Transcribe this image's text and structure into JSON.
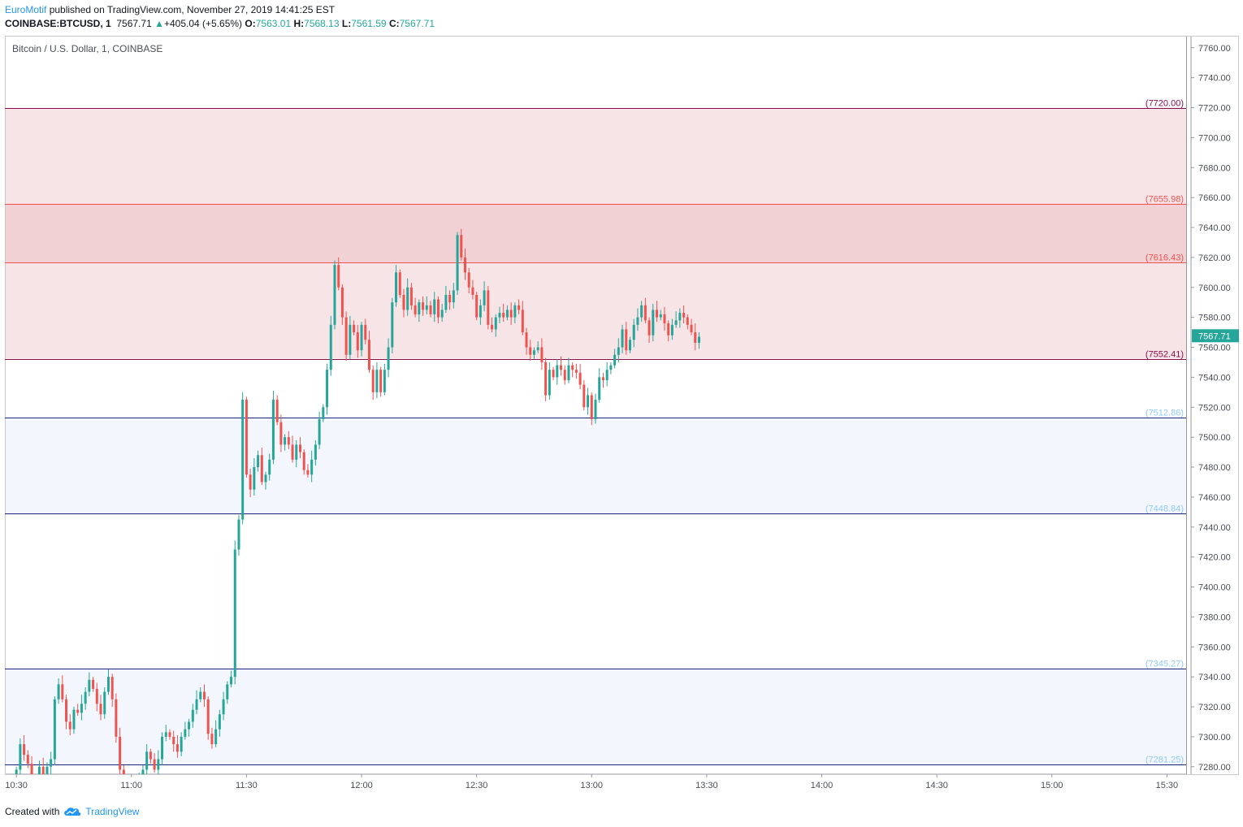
{
  "header": {
    "author": "EuroMotif",
    "published_text": "published on TradingView.com, November 27, 2019 14:41:25 EST",
    "symbol": "COINBASE:BTCUSD, 1",
    "last": "7567.71",
    "change": "+405.04 (+5.65%)",
    "o_label": "O:",
    "o_val": "7563.01",
    "h_label": "H:",
    "h_val": "7568.13",
    "l_label": "L:",
    "l_val": "7561.59",
    "c_label": "C:",
    "c_val": "7567.71"
  },
  "footer": {
    "created_with": "Created with",
    "brand": "TradingView"
  },
  "colors": {
    "up": "#26a69a",
    "down": "#ef5350",
    "resistance_line": "#880e4f",
    "support_line": "#1a237e",
    "resistance_zone": "#f7e4e6",
    "strong_zone": "#f2d1d4",
    "support_zone": "#f3f7fd"
  },
  "chart_data": {
    "type": "candlestick",
    "title": "Bitcoin / U.S. Dollar, 1, COINBASE",
    "ylim": [
      7275,
      7768
    ],
    "y_ticks": [
      "7280.00",
      "7300.00",
      "7320.00",
      "7340.00",
      "7360.00",
      "7380.00",
      "7400.00",
      "7420.00",
      "7440.00",
      "7460.00",
      "7480.00",
      "7500.00",
      "7520.00",
      "7540.00",
      "7560.00",
      "7580.00",
      "7600.00",
      "7620.00",
      "7640.00",
      "7660.00",
      "7680.00",
      "7700.00",
      "7720.00",
      "7740.00",
      "7760.00"
    ],
    "x_ticks": [
      {
        "label": "10:30",
        "t": 630
      },
      {
        "label": "11:00",
        "t": 660
      },
      {
        "label": "11:30",
        "t": 690
      },
      {
        "label": "12:00",
        "t": 720
      },
      {
        "label": "12:30",
        "t": 750
      },
      {
        "label": "13:00",
        "t": 780
      },
      {
        "label": "13:30",
        "t": 810
      },
      {
        "label": "14:00",
        "t": 840
      },
      {
        "label": "14:30",
        "t": 870
      },
      {
        "label": "15:00",
        "t": 900
      },
      {
        "label": "15:30",
        "t": 930
      }
    ],
    "x_range_minutes": [
      627,
      935
    ],
    "levels": [
      {
        "value": 7720.0,
        "label": "(7720.00)",
        "kind": "resistance"
      },
      {
        "value": 7655.98,
        "label": "(7655.98)",
        "kind": "strong"
      },
      {
        "value": 7616.43,
        "label": "(7616.43)",
        "kind": "strong"
      },
      {
        "value": 7552.41,
        "label": "(7552.41)",
        "kind": "resistance"
      },
      {
        "value": 7512.86,
        "label": "(7512.86)",
        "kind": "support"
      },
      {
        "value": 7448.84,
        "label": "(7448.84)",
        "kind": "support"
      },
      {
        "value": 7345.27,
        "label": "(7345.27)",
        "kind": "support"
      },
      {
        "value": 7281.25,
        "label": "(7281.25)",
        "kind": "support"
      }
    ],
    "zones": [
      {
        "from": 7552.41,
        "to": 7720.0,
        "kind": "resistance"
      },
      {
        "from": 7616.43,
        "to": 7655.98,
        "kind": "strong"
      },
      {
        "from": 7448.84,
        "to": 7512.86,
        "kind": "support"
      },
      {
        "from": 7281.25,
        "to": 7345.27,
        "kind": "support"
      }
    ],
    "close_path": [
      [
        630,
        7278
      ],
      [
        631,
        7295
      ],
      [
        632,
        7288
      ],
      [
        633,
        7282
      ],
      [
        634,
        7270
      ],
      [
        635,
        7268
      ],
      [
        636,
        7280
      ],
      [
        637,
        7268
      ],
      [
        638,
        7280
      ],
      [
        639,
        7285
      ],
      [
        640,
        7325
      ],
      [
        641,
        7335
      ],
      [
        642,
        7325
      ],
      [
        643,
        7310
      ],
      [
        644,
        7305
      ],
      [
        645,
        7318
      ],
      [
        646,
        7316
      ],
      [
        647,
        7322
      ],
      [
        648,
        7330
      ],
      [
        649,
        7338
      ],
      [
        650,
        7332
      ],
      [
        651,
        7322
      ],
      [
        652,
        7315
      ],
      [
        653,
        7330
      ],
      [
        654,
        7340
      ],
      [
        655,
        7325
      ],
      [
        656,
        7300
      ],
      [
        657,
        7278
      ],
      [
        658,
        7270
      ],
      [
        659,
        7268
      ],
      [
        660,
        7270
      ],
      [
        661,
        7265
      ],
      [
        662,
        7270
      ],
      [
        663,
        7278
      ],
      [
        664,
        7290
      ],
      [
        665,
        7285
      ],
      [
        666,
        7278
      ],
      [
        667,
        7285
      ],
      [
        668,
        7300
      ],
      [
        669,
        7303
      ],
      [
        670,
        7300
      ],
      [
        671,
        7295
      ],
      [
        672,
        7290
      ],
      [
        673,
        7300
      ],
      [
        674,
        7305
      ],
      [
        675,
        7310
      ],
      [
        676,
        7318
      ],
      [
        677,
        7325
      ],
      [
        678,
        7330
      ],
      [
        679,
        7325
      ],
      [
        680,
        7302
      ],
      [
        681,
        7295
      ],
      [
        682,
        7305
      ],
      [
        683,
        7315
      ],
      [
        684,
        7325
      ],
      [
        685,
        7335
      ],
      [
        686,
        7340
      ],
      [
        687,
        7425
      ],
      [
        688,
        7445
      ],
      [
        689,
        7525
      ],
      [
        690,
        7475
      ],
      [
        691,
        7465
      ],
      [
        692,
        7480
      ],
      [
        693,
        7488
      ],
      [
        694,
        7470
      ],
      [
        695,
        7475
      ],
      [
        696,
        7485
      ],
      [
        697,
        7525
      ],
      [
        698,
        7510
      ],
      [
        699,
        7495
      ],
      [
        700,
        7500
      ],
      [
        701,
        7495
      ],
      [
        702,
        7485
      ],
      [
        703,
        7495
      ],
      [
        704,
        7490
      ],
      [
        705,
        7478
      ],
      [
        706,
        7475
      ],
      [
        707,
        7485
      ],
      [
        708,
        7495
      ],
      [
        709,
        7512
      ],
      [
        710,
        7520
      ],
      [
        711,
        7545
      ],
      [
        712,
        7575
      ],
      [
        713,
        7615
      ],
      [
        714,
        7600
      ],
      [
        715,
        7580
      ],
      [
        716,
        7555
      ],
      [
        717,
        7575
      ],
      [
        718,
        7570
      ],
      [
        719,
        7558
      ],
      [
        720,
        7575
      ],
      [
        721,
        7565
      ],
      [
        722,
        7545
      ],
      [
        723,
        7530
      ],
      [
        724,
        7545
      ],
      [
        725,
        7530
      ],
      [
        726,
        7545
      ],
      [
        727,
        7560
      ],
      [
        728,
        7590
      ],
      [
        729,
        7610
      ],
      [
        730,
        7595
      ],
      [
        731,
        7585
      ],
      [
        732,
        7600
      ],
      [
        733,
        7588
      ],
      [
        734,
        7582
      ],
      [
        735,
        7590
      ],
      [
        736,
        7585
      ],
      [
        737,
        7588
      ],
      [
        738,
        7582
      ],
      [
        739,
        7592
      ],
      [
        740,
        7580
      ],
      [
        741,
        7585
      ],
      [
        742,
        7595
      ],
      [
        743,
        7590
      ],
      [
        744,
        7598
      ],
      [
        745,
        7635
      ],
      [
        746,
        7620
      ],
      [
        747,
        7610
      ],
      [
        748,
        7600
      ],
      [
        749,
        7595
      ],
      [
        750,
        7580
      ],
      [
        751,
        7588
      ],
      [
        752,
        7598
      ],
      [
        753,
        7575
      ],
      [
        754,
        7572
      ],
      [
        755,
        7580
      ],
      [
        756,
        7583
      ],
      [
        757,
        7580
      ],
      [
        758,
        7585
      ],
      [
        759,
        7580
      ],
      [
        760,
        7588
      ],
      [
        761,
        7585
      ],
      [
        762,
        7570
      ],
      [
        763,
        7560
      ],
      [
        764,
        7555
      ],
      [
        765,
        7558
      ],
      [
        766,
        7560
      ],
      [
        767,
        7550
      ],
      [
        768,
        7528
      ],
      [
        769,
        7545
      ],
      [
        770,
        7540
      ],
      [
        771,
        7548
      ],
      [
        772,
        7545
      ],
      [
        773,
        7538
      ],
      [
        774,
        7548
      ],
      [
        775,
        7545
      ],
      [
        776,
        7543
      ],
      [
        777,
        7535
      ],
      [
        778,
        7520
      ],
      [
        779,
        7528
      ],
      [
        780,
        7512
      ],
      [
        781,
        7525
      ],
      [
        782,
        7540
      ],
      [
        783,
        7538
      ],
      [
        784,
        7545
      ],
      [
        785,
        7548
      ],
      [
        786,
        7555
      ],
      [
        787,
        7560
      ],
      [
        788,
        7572
      ],
      [
        789,
        7558
      ],
      [
        790,
        7565
      ],
      [
        791,
        7575
      ],
      [
        792,
        7580
      ],
      [
        793,
        7588
      ],
      [
        794,
        7578
      ],
      [
        795,
        7568
      ],
      [
        796,
        7585
      ],
      [
        797,
        7580
      ],
      [
        798,
        7582
      ],
      [
        799,
        7576
      ],
      [
        800,
        7568
      ],
      [
        801,
        7575
      ],
      [
        802,
        7578
      ],
      [
        803,
        7583
      ],
      [
        804,
        7580
      ],
      [
        805,
        7575
      ],
      [
        806,
        7570
      ],
      [
        807,
        7563
      ],
      [
        808,
        7567
      ]
    ]
  }
}
